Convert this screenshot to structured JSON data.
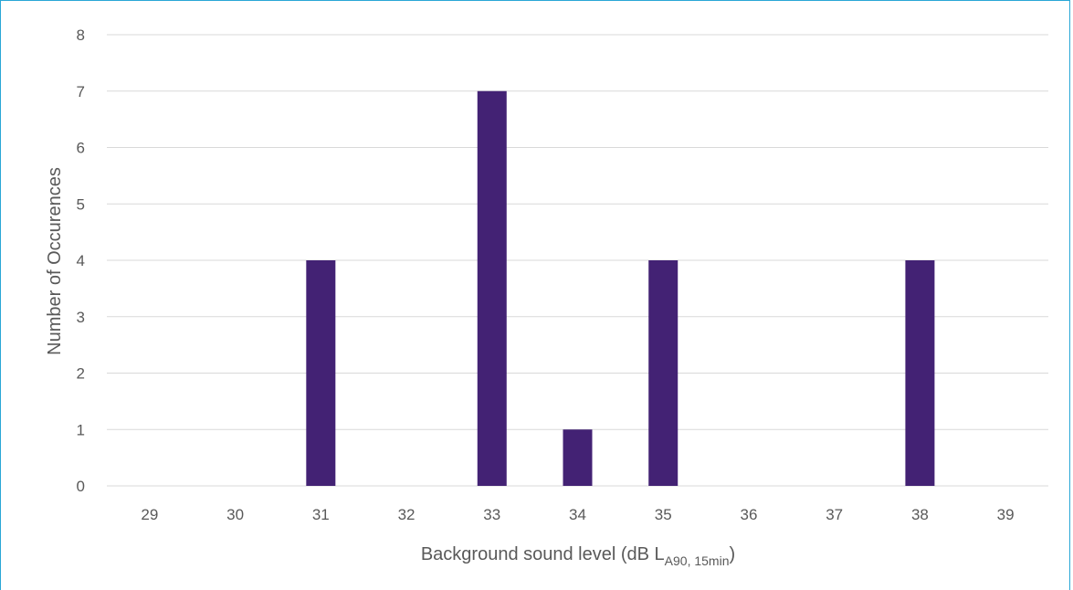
{
  "chart_data": {
    "type": "bar",
    "categories": [
      "29",
      "30",
      "31",
      "32",
      "33",
      "34",
      "35",
      "36",
      "37",
      "38",
      "39"
    ],
    "values": [
      0,
      0,
      4,
      0,
      7,
      1,
      4,
      0,
      0,
      4,
      0
    ],
    "ylim": [
      0,
      8
    ],
    "yticks": [
      "0",
      "1",
      "2",
      "3",
      "4",
      "5",
      "6",
      "7",
      "8"
    ],
    "xlabel": {
      "main": "Background sound level (dB L",
      "subscript": "A90, 15min",
      "suffix": ")"
    },
    "ylabel": "Number of Occurences",
    "grid": true,
    "legend": "none",
    "colors": {
      "bar": "#432274",
      "grid": "#d9d9d9",
      "text": "#595959",
      "border": "#2aa7d6"
    }
  }
}
